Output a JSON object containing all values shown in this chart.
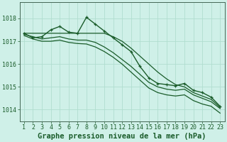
{
  "bg_color": "#cff0e8",
  "grid_color": "#b0ddd0",
  "line_color": "#1a5c2a",
  "xlabel": "Graphe pression niveau de la mer (hPa)",
  "xlabel_fontsize": 7.5,
  "tick_fontsize": 6,
  "xlim": [
    0.5,
    23.5
  ],
  "ylim": [
    1013.5,
    1018.7
  ],
  "yticks": [
    1014,
    1015,
    1016,
    1017,
    1018
  ],
  "xticks": [
    1,
    2,
    3,
    4,
    5,
    6,
    7,
    8,
    9,
    10,
    11,
    12,
    13,
    14,
    15,
    16,
    17,
    18,
    19,
    20,
    21,
    22,
    23
  ],
  "series": [
    {
      "x": [
        1,
        2,
        3,
        4,
        5,
        6,
        7,
        8,
        9,
        10,
        11,
        12,
        13,
        14,
        15,
        16,
        17,
        18,
        19,
        20,
        21,
        22,
        23
      ],
      "y": [
        1017.35,
        1017.15,
        1017.2,
        1017.5,
        1017.65,
        1017.4,
        1017.35,
        1018.05,
        1017.75,
        1017.45,
        1017.15,
        1016.85,
        1016.55,
        1015.9,
        1015.4,
        1015.15,
        1015.1,
        1015.05,
        1015.15,
        1014.85,
        1014.75,
        1014.55,
        1014.15
      ],
      "has_markers": true,
      "lw": 1.0
    },
    {
      "x": [
        1,
        2,
        3,
        4,
        5,
        6,
        7,
        8,
        9,
        10,
        11,
        12,
        13,
        14,
        15,
        16,
        17,
        18,
        19,
        20,
        21,
        22,
        23
      ],
      "y": [
        1017.35,
        1017.35,
        1017.35,
        1017.35,
        1017.35,
        1017.35,
        1017.35,
        1017.35,
        1017.35,
        1017.35,
        1017.2,
        1017.0,
        1016.7,
        1016.35,
        1016.0,
        1015.65,
        1015.35,
        1015.1,
        1015.0,
        1014.75,
        1014.6,
        1014.45,
        1014.1
      ],
      "has_markers": false,
      "lw": 0.9
    },
    {
      "x": [
        1,
        2,
        3,
        4,
        5,
        6,
        7,
        8,
        9,
        10,
        11,
        12,
        13,
        14,
        15,
        16,
        17,
        18,
        19,
        20,
        21,
        22,
        23
      ],
      "y": [
        1017.3,
        1017.2,
        1017.1,
        1017.15,
        1017.2,
        1017.1,
        1017.05,
        1017.05,
        1016.95,
        1016.75,
        1016.5,
        1016.2,
        1015.9,
        1015.55,
        1015.2,
        1015.0,
        1014.9,
        1014.85,
        1014.9,
        1014.65,
        1014.5,
        1014.35,
        1014.05
      ],
      "has_markers": false,
      "lw": 0.9
    },
    {
      "x": [
        1,
        2,
        3,
        4,
        5,
        6,
        7,
        8,
        9,
        10,
        11,
        12,
        13,
        14,
        15,
        16,
        17,
        18,
        19,
        20,
        21,
        22,
        23
      ],
      "y": [
        1017.25,
        1017.1,
        1017.0,
        1017.0,
        1017.05,
        1016.95,
        1016.9,
        1016.88,
        1016.75,
        1016.55,
        1016.3,
        1016.0,
        1015.65,
        1015.3,
        1014.95,
        1014.75,
        1014.65,
        1014.6,
        1014.65,
        1014.4,
        1014.25,
        1014.15,
        1013.85
      ],
      "has_markers": false,
      "lw": 0.9
    }
  ]
}
